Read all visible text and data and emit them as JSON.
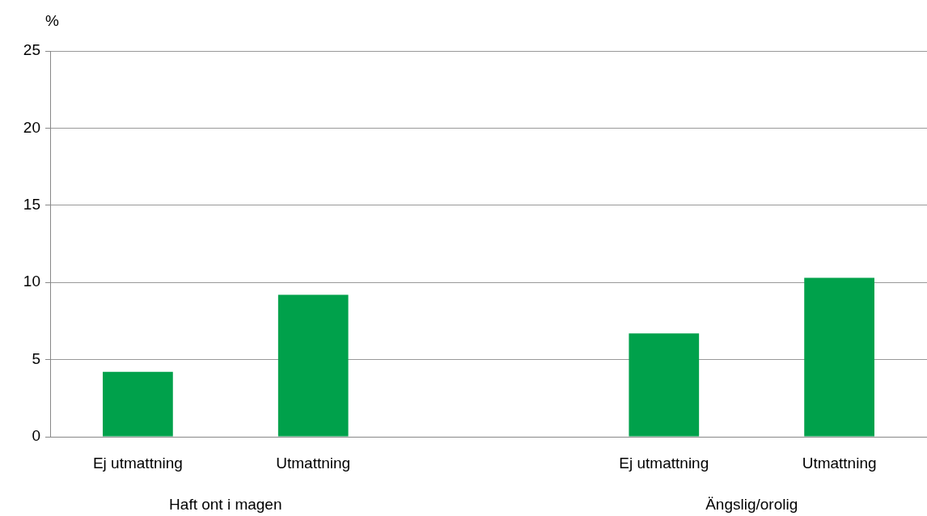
{
  "chart_data": {
    "type": "bar",
    "ylabel": "%",
    "categories": [
      "Ej utmattning",
      "Utmattning",
      null,
      "Ej utmattning",
      "Utmattning"
    ],
    "values": [
      4.2,
      9.2,
      null,
      6.7,
      10.3
    ],
    "color": "#00a14b",
    "ylim": [
      0,
      25
    ],
    "yticks": [
      0,
      5,
      10,
      15,
      20,
      25
    ],
    "grid": "y",
    "legend": false,
    "annotations": [
      "Haft ont i magen",
      "Ängslig/orolig"
    ]
  }
}
